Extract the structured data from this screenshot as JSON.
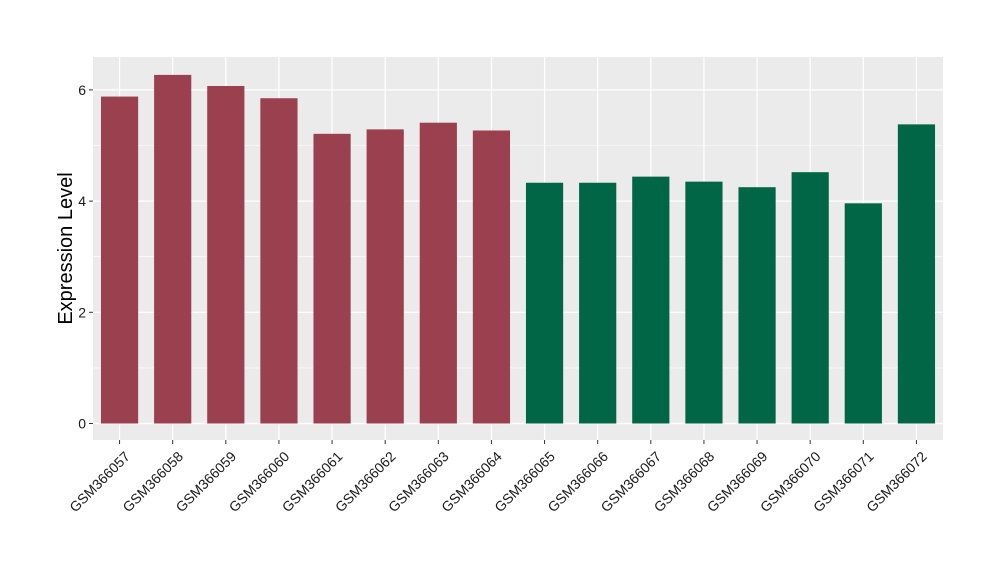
{
  "chart_data": {
    "type": "bar",
    "title": "",
    "xlabel": "",
    "ylabel": "Expression Level",
    "ylim": [
      0,
      6.5
    ],
    "yticks": [
      0,
      2,
      4,
      6
    ],
    "grid": true,
    "legend": "none",
    "categories": [
      "GSM366057",
      "GSM366058",
      "GSM366059",
      "GSM366060",
      "GSM366061",
      "GSM366062",
      "GSM366063",
      "GSM366064",
      "GSM366065",
      "GSM366066",
      "GSM366067",
      "GSM366068",
      "GSM366069",
      "GSM366070",
      "GSM366071",
      "GSM366072"
    ],
    "values": [
      5.88,
      6.27,
      6.07,
      5.85,
      5.21,
      5.29,
      5.41,
      5.27,
      4.33,
      4.33,
      4.44,
      4.35,
      4.25,
      4.52,
      3.96,
      5.38
    ],
    "groups": [
      0,
      0,
      0,
      0,
      0,
      0,
      0,
      0,
      1,
      1,
      1,
      1,
      1,
      1,
      1,
      1
    ],
    "group_colors": [
      "#9a404f",
      "#006646"
    ],
    "panel_background": "#ebebeb",
    "grid_color": "#ffffff"
  }
}
